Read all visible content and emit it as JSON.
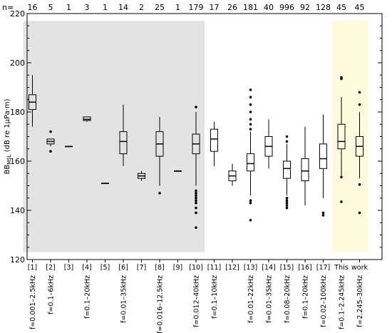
{
  "chart_data": {
    "type": "boxplot",
    "title": "",
    "ylabel": "BB",
    "ylabel_sub": "MSL",
    "ylabel_rest": " (dB re 1μPa·m)",
    "ylim": [
      120,
      220
    ],
    "yticks": [
      120,
      140,
      160,
      180,
      200,
      220
    ],
    "n_label": "n=",
    "shaded_gray_groups": [
      1,
      10
    ],
    "shaded_yellow_groups": [
      18,
      19
    ],
    "colors": {
      "gray_shade": "#e3e3e3",
      "yellow_shade": "#fdfade",
      "box": "#000000"
    },
    "groups": [
      {
        "label": "[1]",
        "n": "16",
        "freq": "f=0.001–2.5kHz",
        "whislo": 174,
        "q1": 181,
        "median": 184,
        "q3": 187,
        "whishi": 195,
        "fliers": []
      },
      {
        "label": "[2]",
        "n": "5",
        "freq": "f=0.1–6kHz",
        "whislo": 166,
        "q1": 167,
        "median": 168,
        "q3": 169,
        "whishi": 169,
        "fliers": [
          164,
          172
        ]
      },
      {
        "label": "[3]",
        "n": "1",
        "freq": "",
        "whislo": 166,
        "q1": 166,
        "median": 166,
        "q3": 166,
        "whishi": 166,
        "fliers": []
      },
      {
        "label": "[4]",
        "n": "3",
        "freq": "f=0.1–20kHz",
        "whislo": 176,
        "q1": 176.5,
        "median": 177,
        "q3": 178,
        "whishi": 178,
        "fliers": []
      },
      {
        "label": "[5]",
        "n": "1",
        "freq": "",
        "whislo": 151,
        "q1": 151,
        "median": 151,
        "q3": 151,
        "whishi": 151,
        "fliers": []
      },
      {
        "label": "[6]",
        "n": "14",
        "freq": "f=0.01–35kHz",
        "whislo": 158,
        "q1": 163,
        "median": 168,
        "q3": 172,
        "whishi": 183,
        "fliers": []
      },
      {
        "label": "[7]",
        "n": "2",
        "freq": "",
        "whislo": 152,
        "q1": 153,
        "median": 154,
        "q3": 155,
        "whishi": 156,
        "fliers": []
      },
      {
        "label": "[8]",
        "n": "25",
        "freq": "f=0.016–12.5kHz",
        "whislo": 150,
        "q1": 162,
        "median": 167,
        "q3": 172,
        "whishi": 178,
        "fliers": [
          147
        ]
      },
      {
        "label": "[9]",
        "n": "1",
        "freq": "",
        "whislo": 156,
        "q1": 156,
        "median": 156,
        "q3": 156,
        "whishi": 156,
        "fliers": []
      },
      {
        "label": "[10]",
        "n": "179",
        "freq": "f=0.012–40kHz",
        "whislo": 150,
        "q1": 163,
        "median": 167,
        "q3": 171,
        "whishi": 180,
        "fliers": [
          133,
          139,
          141,
          143,
          144,
          145,
          146,
          147,
          148,
          182
        ]
      },
      {
        "label": "[11]",
        "n": "17",
        "freq": "f=0.1–10kHz",
        "whislo": 158,
        "q1": 164,
        "median": 169,
        "q3": 173,
        "whishi": 176,
        "fliers": []
      },
      {
        "label": "[12]",
        "n": "26",
        "freq": "",
        "whislo": 150,
        "q1": 152,
        "median": 154,
        "q3": 156,
        "whishi": 159,
        "fliers": []
      },
      {
        "label": "[13]",
        "n": "181",
        "freq": "f=0.01–22kHz",
        "whislo": 146,
        "q1": 156,
        "median": 159,
        "q3": 163,
        "whishi": 172,
        "fliers": [
          136,
          143,
          144,
          173,
          175,
          177,
          180,
          183,
          186,
          189
        ]
      },
      {
        "label": "[14]",
        "n": "40",
        "freq": "f=0.01–35kHz",
        "whislo": 157,
        "q1": 162,
        "median": 166,
        "q3": 170,
        "whishi": 177,
        "fliers": []
      },
      {
        "label": "[15]",
        "n": "996",
        "freq": "f=0.08–20kHz",
        "whislo": 146,
        "q1": 153,
        "median": 157,
        "q3": 160,
        "whishi": 167,
        "fliers": [
          141,
          142,
          143,
          144,
          145,
          168,
          170
        ]
      },
      {
        "label": "[16]",
        "n": "92",
        "freq": "f=0.1–20kHz",
        "whislo": 142,
        "q1": 152,
        "median": 156,
        "q3": 161,
        "whishi": 174,
        "fliers": []
      },
      {
        "label": "[17]",
        "n": "128",
        "freq": "f=0.02–100kHz",
        "whislo": 145,
        "q1": 157,
        "median": 161,
        "q3": 167,
        "whishi": 179,
        "fliers": [
          138,
          139
        ]
      },
      {
        "label": "This",
        "n": "45",
        "freq": "f=0.1–2.245kHz",
        "whislo": 154,
        "q1": 165,
        "median": 168,
        "q3": 175,
        "whishi": 186,
        "fliers": [
          143.5,
          153.5,
          193.5,
          194
        ]
      },
      {
        "label": "work",
        "n": "45",
        "freq": "f=2.245–30kHz",
        "whislo": 153,
        "q1": 162,
        "median": 166,
        "q3": 170,
        "whishi": 180,
        "fliers": [
          139,
          150.5,
          183,
          188
        ]
      }
    ]
  }
}
